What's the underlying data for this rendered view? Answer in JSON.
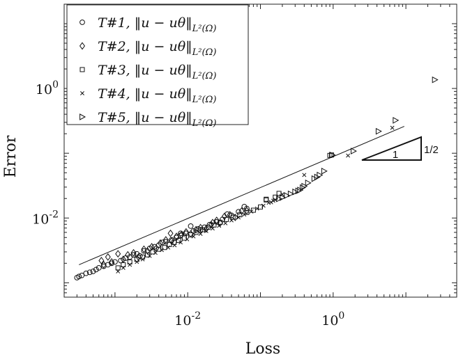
{
  "chart_data": {
    "type": "scatter",
    "title": "",
    "xlabel": "Loss",
    "ylabel": "Error",
    "xscale": "log",
    "yscale": "log",
    "xlim": [
      0.0002,
      50
    ],
    "ylim": [
      0.0006,
      20
    ],
    "grid": false,
    "legend_position": "top-left",
    "x_ticks": [
      {
        "value": 0.01,
        "base": "10",
        "exp": "-2"
      },
      {
        "value": 1,
        "base": "10",
        "exp": "0"
      }
    ],
    "y_ticks": [
      {
        "value": 0.01,
        "base": "10",
        "exp": "-2"
      },
      {
        "value": 1,
        "base": "10",
        "exp": "0"
      }
    ],
    "series": [
      {
        "name": "T#1",
        "marker": "circle",
        "points": [
          [
            0.0003,
            0.0012
          ],
          [
            0.00032,
            0.00125
          ],
          [
            0.00035,
            0.0013
          ],
          [
            0.0004,
            0.0014
          ],
          [
            0.00045,
            0.00145
          ],
          [
            0.0005,
            0.0015
          ],
          [
            0.00055,
            0.0016
          ],
          [
            0.0006,
            0.0017
          ],
          [
            0.0007,
            0.0018
          ],
          [
            0.0008,
            0.0019
          ],
          [
            0.0009,
            0.002
          ],
          [
            0.001,
            0.0021
          ],
          [
            0.0012,
            0.0022
          ],
          [
            0.0014,
            0.0024
          ],
          [
            0.0016,
            0.0025
          ],
          [
            0.0018,
            0.0027
          ],
          [
            0.002,
            0.0028
          ],
          [
            0.0025,
            0.0031
          ],
          [
            0.003,
            0.0034
          ],
          [
            0.0035,
            0.0036
          ],
          [
            0.004,
            0.0038
          ],
          [
            0.005,
            0.0043
          ],
          [
            0.006,
            0.0046
          ],
          [
            0.007,
            0.005
          ],
          [
            0.008,
            0.0054
          ],
          [
            0.0095,
            0.0058
          ],
          [
            0.012,
            0.0063
          ],
          [
            0.014,
            0.0068
          ],
          [
            0.017,
            0.0072
          ],
          [
            0.02,
            0.0079
          ],
          [
            0.025,
            0.0087
          ],
          [
            0.03,
            0.0095
          ],
          [
            0.04,
            0.011
          ],
          [
            0.05,
            0.0125
          ],
          [
            0.065,
            0.014
          ],
          [
            0.008,
            0.0058
          ],
          [
            0.011,
            0.0075
          ],
          [
            0.015,
            0.0065
          ],
          [
            0.0022,
            0.0026
          ],
          [
            0.0045,
            0.0042
          ],
          [
            0.06,
            0.015
          ],
          [
            0.035,
            0.0115
          ]
        ]
      },
      {
        "name": "T#2",
        "marker": "diamond",
        "points": [
          [
            0.00065,
            0.0022
          ],
          [
            0.0008,
            0.0025
          ],
          [
            0.0009,
            0.0021
          ],
          [
            0.0011,
            0.0028
          ],
          [
            0.0013,
            0.0023
          ],
          [
            0.0015,
            0.0027
          ],
          [
            0.0018,
            0.0029
          ],
          [
            0.0021,
            0.0025
          ],
          [
            0.0025,
            0.0033
          ],
          [
            0.0028,
            0.0031
          ],
          [
            0.0032,
            0.0036
          ],
          [
            0.0037,
            0.0034
          ],
          [
            0.0042,
            0.0041
          ],
          [
            0.005,
            0.0046
          ],
          [
            0.006,
            0.0044
          ],
          [
            0.007,
            0.0052
          ],
          [
            0.0082,
            0.0055
          ],
          [
            0.0095,
            0.0061
          ],
          [
            0.011,
            0.0057
          ],
          [
            0.013,
            0.0066
          ],
          [
            0.015,
            0.0071
          ],
          [
            0.018,
            0.0068
          ],
          [
            0.021,
            0.0079
          ],
          [
            0.025,
            0.0092
          ],
          [
            0.028,
            0.0084
          ],
          [
            0.032,
            0.0106
          ],
          [
            0.038,
            0.0112
          ],
          [
            0.045,
            0.0102
          ],
          [
            0.055,
            0.0128
          ],
          [
            0.065,
            0.013
          ],
          [
            0.022,
            0.0085
          ],
          [
            0.0058,
            0.0058
          ],
          [
            0.0007,
            0.0019
          ]
        ]
      },
      {
        "name": "T#3",
        "marker": "square",
        "points": [
          [
            0.0011,
            0.0017
          ],
          [
            0.0013,
            0.0019
          ],
          [
            0.0016,
            0.0021
          ],
          [
            0.002,
            0.0023
          ],
          [
            0.0024,
            0.0025
          ],
          [
            0.0028,
            0.0027
          ],
          [
            0.0033,
            0.003
          ],
          [
            0.004,
            0.0033
          ],
          [
            0.0048,
            0.0035
          ],
          [
            0.0056,
            0.0039
          ],
          [
            0.0065,
            0.0042
          ],
          [
            0.0075,
            0.0045
          ],
          [
            0.009,
            0.0049
          ],
          [
            0.011,
            0.0055
          ],
          [
            0.013,
            0.006
          ],
          [
            0.016,
            0.0066
          ],
          [
            0.019,
            0.0072
          ],
          [
            0.023,
            0.0078
          ],
          [
            0.028,
            0.0086
          ],
          [
            0.034,
            0.0095
          ],
          [
            0.042,
            0.0103
          ],
          [
            0.052,
            0.0112
          ],
          [
            0.065,
            0.0122
          ],
          [
            0.08,
            0.0132
          ],
          [
            0.1,
            0.0148
          ],
          [
            0.12,
            0.019
          ],
          [
            0.16,
            0.021
          ],
          [
            0.18,
            0.024
          ],
          [
            0.12,
            0.0195
          ],
          [
            0.9,
            0.0925
          ],
          [
            0.95,
            0.094
          ]
        ]
      },
      {
        "name": "T#4",
        "marker": "x",
        "points": [
          [
            0.0011,
            0.0015
          ],
          [
            0.0013,
            0.0017
          ],
          [
            0.0016,
            0.0019
          ],
          [
            0.002,
            0.0021
          ],
          [
            0.0024,
            0.0023
          ],
          [
            0.003,
            0.0026
          ],
          [
            0.0036,
            0.0029
          ],
          [
            0.0044,
            0.0032
          ],
          [
            0.0054,
            0.0035
          ],
          [
            0.0066,
            0.0038
          ],
          [
            0.008,
            0.0042
          ],
          [
            0.0098,
            0.0047
          ],
          [
            0.012,
            0.0052
          ],
          [
            0.015,
            0.0057
          ],
          [
            0.018,
            0.0063
          ],
          [
            0.022,
            0.0069
          ],
          [
            0.027,
            0.0076
          ],
          [
            0.033,
            0.0083
          ],
          [
            0.04,
            0.0092
          ],
          [
            0.05,
            0.0102
          ],
          [
            0.06,
            0.0113
          ],
          [
            0.075,
            0.0126
          ],
          [
            0.09,
            0.014
          ],
          [
            0.11,
            0.0155
          ],
          [
            0.13,
            0.0172
          ],
          [
            0.16,
            0.019
          ],
          [
            0.2,
            0.0232
          ],
          [
            0.15,
            0.0185
          ],
          [
            0.14,
            0.0175
          ],
          [
            0.4,
            0.0462
          ],
          [
            1.6,
            0.092
          ],
          [
            6.5,
            0.247
          ]
        ]
      },
      {
        "name": "T#5",
        "marker": "triangle-right",
        "points": [
          [
            0.18,
            0.0198
          ],
          [
            0.2,
            0.0207
          ],
          [
            0.23,
            0.0222
          ],
          [
            0.26,
            0.0236
          ],
          [
            0.3,
            0.0253
          ],
          [
            0.35,
            0.027
          ],
          [
            0.45,
            0.0348
          ],
          [
            0.4,
            0.031
          ],
          [
            0.38,
            0.0295
          ],
          [
            0.6,
            0.0428
          ],
          [
            0.75,
            0.053
          ],
          [
            0.55,
            0.0405
          ],
          [
            0.65,
            0.046
          ],
          [
            0.33,
            0.0262
          ],
          [
            0.97,
            0.094
          ],
          [
            1.9,
            0.108
          ],
          [
            4.2,
            0.218
          ],
          [
            7.2,
            0.322
          ],
          [
            25,
            1.36
          ]
        ]
      }
    ],
    "reference_line": {
      "from": [
        0.00032,
        0.0019
      ],
      "to": [
        9.5,
        0.26
      ]
    },
    "slope_annotation": {
      "run_label": "1",
      "rise_label": "1/2"
    }
  }
}
